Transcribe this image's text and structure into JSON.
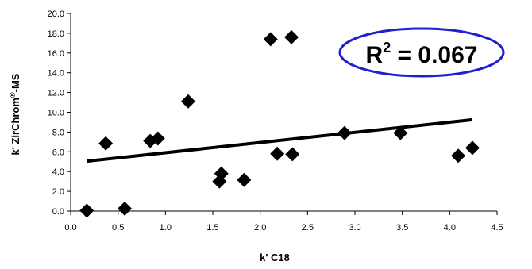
{
  "chart_data": {
    "type": "scatter",
    "xlabel": "k' C18",
    "ylabel_main": "k' ZirChrom",
    "ylabel_sup": "®",
    "ylabel_tail": "-MS",
    "xlim": [
      0,
      4.5
    ],
    "ylim": [
      0,
      20
    ],
    "xticks": [
      "0.0",
      "0.5",
      "1.0",
      "1.5",
      "2.0",
      "2.5",
      "3.0",
      "3.5",
      "4.0",
      "4.5"
    ],
    "yticks": [
      "0.0",
      "2.0",
      "4.0",
      "6.0",
      "8.0",
      "10.0",
      "12.0",
      "14.0",
      "16.0",
      "18.0",
      "20.0"
    ],
    "points": [
      {
        "x": 0.17,
        "y": 0.05
      },
      {
        "x": 0.37,
        "y": 6.85
      },
      {
        "x": 0.57,
        "y": 0.25
      },
      {
        "x": 0.84,
        "y": 7.1
      },
      {
        "x": 0.92,
        "y": 7.35
      },
      {
        "x": 1.24,
        "y": 11.1
      },
      {
        "x": 1.57,
        "y": 3.0
      },
      {
        "x": 1.59,
        "y": 3.8
      },
      {
        "x": 1.83,
        "y": 3.15
      },
      {
        "x": 2.11,
        "y": 17.4
      },
      {
        "x": 2.18,
        "y": 5.8
      },
      {
        "x": 2.33,
        "y": 17.6
      },
      {
        "x": 2.34,
        "y": 5.75
      },
      {
        "x": 2.89,
        "y": 7.9
      },
      {
        "x": 3.48,
        "y": 7.9
      },
      {
        "x": 4.09,
        "y": 5.6
      },
      {
        "x": 4.24,
        "y": 6.4
      }
    ],
    "trendline": {
      "x": [
        0.17,
        4.24
      ],
      "y": [
        5.05,
        9.25
      ]
    },
    "annotation": {
      "main": "R",
      "sup": "2",
      "rest": " = 0.067"
    },
    "grid": false,
    "legend": "none",
    "colors": {
      "marker": "#000000",
      "trend": "#000000",
      "ellipse": "#1f1fcf"
    }
  }
}
